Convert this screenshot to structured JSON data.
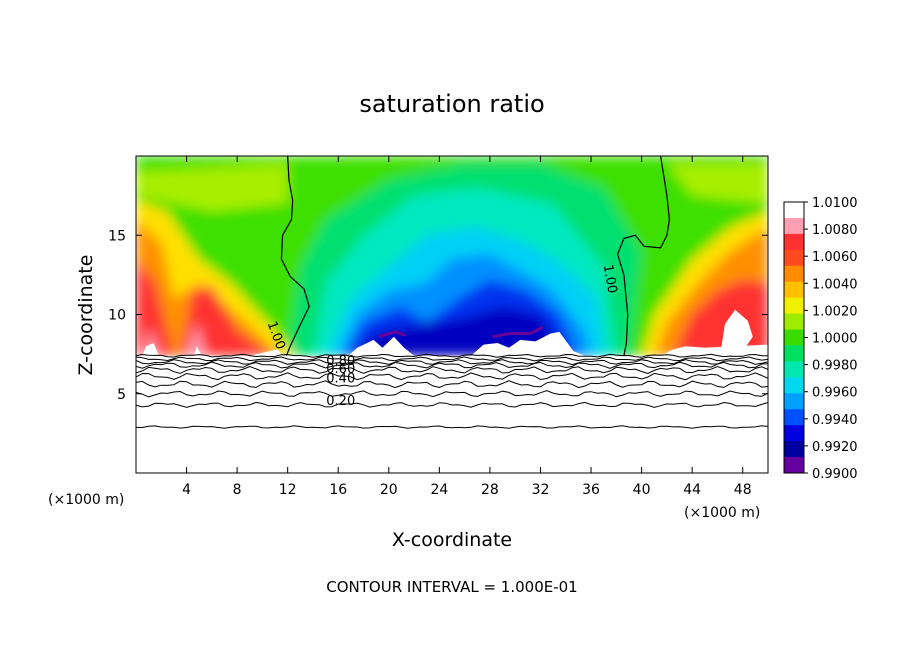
{
  "chart_data": {
    "type": "heatmap",
    "title": "saturation ratio",
    "xlabel": "X-coordinate",
    "ylabel": "Z-coordinate",
    "x_unit_left": "(×1000 m)",
    "x_unit_right": "(×1000 m)",
    "xlim": [
      0,
      50
    ],
    "ylim": [
      0,
      20
    ],
    "x_ticks": [
      4,
      8,
      12,
      16,
      20,
      24,
      28,
      32,
      36,
      40,
      44,
      48
    ],
    "x_tick_labels": [
      "4",
      "8",
      "12",
      "16",
      "20",
      "24",
      "28",
      "32",
      "36",
      "40",
      "44",
      "48"
    ],
    "y_ticks": [
      5,
      10,
      15
    ],
    "y_tick_labels": [
      "5",
      "10",
      "15"
    ],
    "footer": "CONTOUR INTERVAL = 1.000E-01",
    "colorbar": {
      "min": 0.99,
      "max": 1.01,
      "labels": [
        "1.0100",
        "1.0080",
        "1.0060",
        "1.0040",
        "1.0020",
        "1.0000",
        "0.9980",
        "0.9960",
        "0.9940",
        "0.9920",
        "0.9900"
      ],
      "colors": [
        "#ffffff",
        "#ff9fb4",
        "#ff3030",
        "#ff4a20",
        "#ff8c00",
        "#ffc000",
        "#f0f000",
        "#a0ec00",
        "#3adc00",
        "#00e060",
        "#00e8b0",
        "#00d8f0",
        "#00a0ff",
        "#0050ff",
        "#0000e0",
        "#0000a0",
        "#6600a0"
      ]
    },
    "contour_labels": [
      {
        "text": "1.00",
        "x": 10.8,
        "y": 8.6,
        "rot": 70
      },
      {
        "text": "1.00",
        "x": 37.2,
        "y": 12.2,
        "rot": 80
      },
      {
        "text": "0.80",
        "x": 16.2,
        "y": 6.8,
        "rot": 0
      },
      {
        "text": "0.60",
        "x": 16.2,
        "y": 6.3,
        "rot": 0
      },
      {
        "text": "0.40",
        "x": 16.2,
        "y": 5.7,
        "rot": 0
      },
      {
        "text": "0.20",
        "x": 16.2,
        "y": 4.3,
        "rot": 0
      }
    ],
    "contours_lower": [
      {
        "z": 7.4,
        "wave": 0.06
      },
      {
        "z": 7.2,
        "wave": 0.08
      },
      {
        "z": 7.0,
        "wave": 0.1
      },
      {
        "z": 6.8,
        "wave": 0.12
      },
      {
        "z": 6.5,
        "wave": 0.14
      },
      {
        "z": 6.1,
        "wave": 0.14
      },
      {
        "z": 5.6,
        "wave": 0.14
      },
      {
        "z": 5.0,
        "wave": 0.12
      },
      {
        "z": 4.3,
        "wave": 0.1
      },
      {
        "z": 2.9,
        "wave": 0.05
      }
    ],
    "contour_upper_left": [
      [
        12.0,
        20
      ],
      [
        12.1,
        18.5
      ],
      [
        12.4,
        17.2
      ],
      [
        12.3,
        16
      ],
      [
        11.6,
        15
      ],
      [
        11.5,
        13.5
      ],
      [
        12.2,
        12.4
      ],
      [
        13.3,
        11.6
      ],
      [
        13.7,
        10.5
      ],
      [
        12.9,
        9.2
      ],
      [
        12.2,
        8.0
      ],
      [
        11.9,
        7.4
      ]
    ],
    "contour_upper_right": [
      [
        41.5,
        20
      ],
      [
        42.0,
        17.5
      ],
      [
        42.2,
        16
      ],
      [
        42.0,
        15
      ],
      [
        41.5,
        14.2
      ],
      [
        40.2,
        14.3
      ],
      [
        39.5,
        15
      ],
      [
        38.6,
        14.8
      ],
      [
        38.1,
        13.8
      ],
      [
        38.6,
        12.5
      ],
      [
        38.9,
        10
      ],
      [
        38.8,
        8.2
      ],
      [
        38.6,
        7.4
      ]
    ]
  }
}
